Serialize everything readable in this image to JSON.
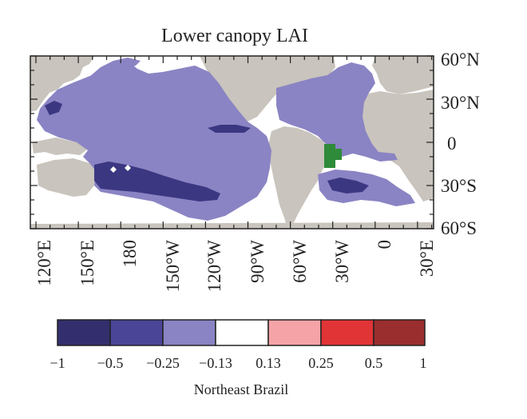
{
  "figure": {
    "title": "Lower canopy LAI"
  },
  "map": {
    "lat_labels": [
      "60°N",
      "30°N",
      "0",
      "30°S",
      "60°S"
    ],
    "lon_labels": [
      "120°E",
      "150°E",
      "180",
      "150°W",
      "120°W",
      "90°W",
      "60°W",
      "30°W",
      "0",
      "30°E"
    ],
    "colors": {
      "land": "#c9c4bd",
      "ocean_neutral": "#ffffff",
      "anomaly_light_negative": "#8a84c4",
      "anomaly_dark_negative": "#3b3781",
      "region_marker": "#2e8b3a"
    }
  },
  "colorbar": {
    "title": "Northeast Brazil",
    "labels": [
      "−1",
      "−0.5",
      "−0.25",
      "−0.13",
      "0.13",
      "0.25",
      "0.5",
      "1"
    ],
    "colors": [
      "#332f6e",
      "#4b4597",
      "#8a84c4",
      "#ffffff",
      "#f6a3a7",
      "#e13436",
      "#9a2e2e"
    ]
  }
}
